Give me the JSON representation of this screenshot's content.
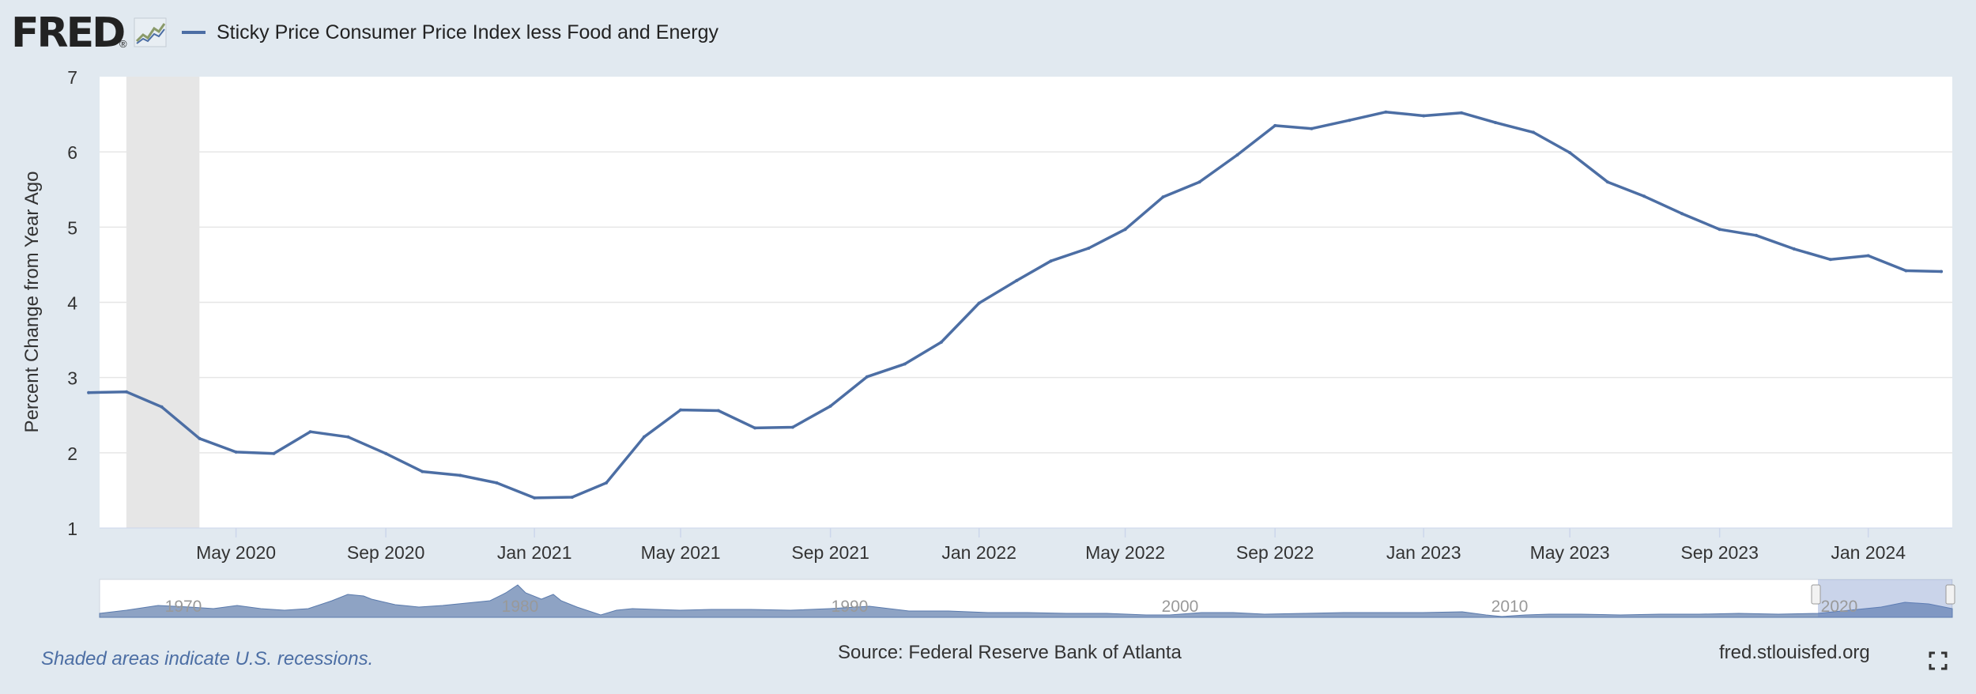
{
  "header": {
    "logo_text": "FRED",
    "logo_reg": "®",
    "series_label": "Sticky Price Consumer Price Index less Food and Energy"
  },
  "colors": {
    "series_line": "#4c6ea4",
    "recession_shade": "#e6e6e6",
    "background": "#e1e9f0",
    "plot_background": "#ffffff",
    "navigator_fill": "#8ea3c4"
  },
  "chart_data": {
    "type": "line",
    "title": "",
    "ylabel": "Percent Change from Year Ago",
    "xlabel": "",
    "ylim": [
      1,
      7
    ],
    "yticks": [
      1,
      2,
      3,
      4,
      5,
      6,
      7
    ],
    "xlim": [
      "2020-01-10",
      "2024-03-10"
    ],
    "xticks": [
      "May 2020",
      "Sep 2020",
      "Jan 2021",
      "May 2021",
      "Sep 2021",
      "Jan 2022",
      "May 2022",
      "Sep 2022",
      "Jan 2023",
      "May 2023",
      "Sep 2023",
      "Jan 2024"
    ],
    "recessions": [
      {
        "start": "2020-02-01",
        "end": "2020-04-01"
      }
    ],
    "series": [
      {
        "name": "Sticky Price Consumer Price Index less Food and Energy",
        "x": [
          "2020-01-01",
          "2020-02-01",
          "2020-03-01",
          "2020-04-01",
          "2020-05-01",
          "2020-06-01",
          "2020-07-01",
          "2020-08-01",
          "2020-09-01",
          "2020-10-01",
          "2020-11-01",
          "2020-12-01",
          "2021-01-01",
          "2021-02-01",
          "2021-03-01",
          "2021-04-01",
          "2021-05-01",
          "2021-06-01",
          "2021-07-01",
          "2021-08-01",
          "2021-09-01",
          "2021-10-01",
          "2021-11-01",
          "2021-12-01",
          "2022-01-01",
          "2022-02-01",
          "2022-03-01",
          "2022-04-01",
          "2022-05-01",
          "2022-06-01",
          "2022-07-01",
          "2022-08-01",
          "2022-09-01",
          "2022-10-01",
          "2022-11-01",
          "2022-12-01",
          "2023-01-01",
          "2023-02-01",
          "2023-03-01",
          "2023-04-01",
          "2023-05-01",
          "2023-06-01",
          "2023-07-01",
          "2023-08-01",
          "2023-09-01",
          "2023-10-01",
          "2023-11-01",
          "2023-12-01",
          "2024-01-01",
          "2024-02-01",
          "2024-03-01"
        ],
        "values": [
          2.8,
          2.81,
          2.61,
          2.19,
          2.01,
          1.99,
          2.28,
          2.21,
          1.99,
          1.75,
          1.7,
          1.6,
          1.4,
          1.41,
          1.6,
          2.21,
          2.57,
          2.56,
          2.33,
          2.34,
          2.62,
          3.01,
          3.18,
          3.47,
          3.99,
          4.29,
          4.55,
          4.72,
          4.97,
          5.4,
          5.6,
          5.96,
          6.35,
          6.31,
          6.42,
          6.53,
          6.48,
          6.52,
          6.39,
          6.26,
          5.99,
          5.6,
          5.41,
          5.18,
          4.97,
          4.89,
          4.71,
          4.57,
          4.62,
          4.42,
          4.41
        ]
      }
    ],
    "navigator": {
      "labels": [
        "1970",
        "1980",
        "1990",
        "2000",
        "2010",
        "2020"
      ]
    }
  },
  "footer": {
    "recession_note": "Shaded areas indicate U.S. recessions.",
    "source": "Source: Federal Reserve Bank of Atlanta",
    "site": "fred.stlouisfed.org"
  }
}
